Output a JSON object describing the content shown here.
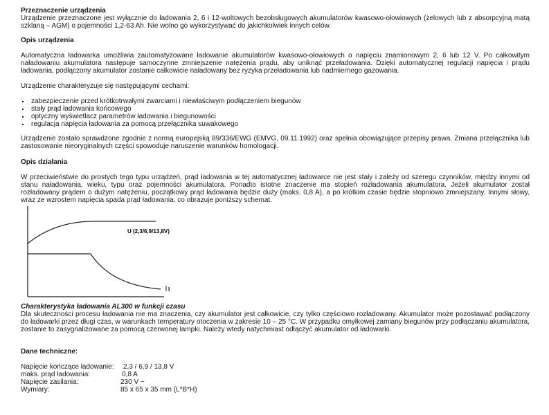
{
  "sections": {
    "purpose": {
      "heading": "Przeznaczenie urządzenia",
      "text": "Urządzenie przeznaczone jest wyłącznie do ładowania 2, 6 i 12-woltowych bezobsługowych akumulatorów kwasowo-ołowiowych (żelowych lub z absorpcyjną matą szklaną – AGM) o pojemności 1,2-63 Ah. Nie wolno go wykorzystywać do jakichkolwiek innych celów."
    },
    "description": {
      "heading": "Opis urządzenia",
      "text": "Automatyczna ładowarka umożliwia zautomatyzowane ładowanie akumulatorów kwasowo-ołowiowych o napięciu znamionowym 2, 6 lub 12 V. Po całkowitym naładowaniu akumulatora następuje samoczynne zmniejszenie natężenia prądu, aby uniknąć przeładowania. Dzięki automatycznej regulacji napięcia i prądu ładowania, podłączony akumulator zostanie całkowicie naładowany bez ryzyka przeładowania lub nadmiernego gazowania.",
      "features_intro": "Urządzenie charakteryzuje się następującymi cechami:",
      "features": [
        "zabezpieczenie przed krótkotrwałymi zwarciami i niewłaściwym podłączeniem biegunów",
        "stały prąd ładowania końcowego",
        "optyczny wyświetlacz parametrów ładowania i biegunowości",
        "regulacja napięcia ładowania za pomocą przełącznika suwakowego"
      ],
      "compliance": "Urządzenie zostało sprawdzone zgodnie z normą europejską 89/336/EWG (EMVG, 09.11.1992) oraz spełnia obowiązujące przepisy prawa. Zmiana przełącznika lub zastosowanie nieoryginalnych części spowoduje naruszenie warunków homologacji."
    },
    "operation": {
      "heading": "Opis działania",
      "text": "W przeciwieństwie do prostych tego typu urządzeń, prąd ładowania w tej automatycznej ładowarce nie jest stały i zależy od szeregu czynników, między innymi od stanu naładowania, wieku, typu oraz pojemności akumulatora. Ponadto istotne znaczenie ma stopień rozładowania akumulatora. Jeżeli akumulator został rozładowany prądem o dużym natężeniu, początkowy prąd ładowania będzie duży (maks. 0,8 A), a po krótkim czasie będzie stopniowo zmniejszany. Innymi słowy, wraz ze wzrostem napięcia spada prąd ładowania, co obrazuje poniższy schemat.",
      "diagram": {
        "voltage_label": "U (2,3/6,9/13,8V)",
        "current_label": "I"
      },
      "caption": "Charakterystyka ładowania AL300 w funkcji czasu",
      "caption_text": "Dla skuteczności procesu ładowania nie ma znaczenia, czy akumulator jest całkowicie, czy tylko częściowo rozładowany. Akumulator może pozostawać podłączony do ładowarki przez długi czas, w warunkach temperatury otoczenia w zakresie 10 – 25 °C. W przypadku omyłkowej zamiany biegunów przy podłączaniu akumulatora, zostanie to zasygnalizowane za pomocą czerwonej lampki. Należy wtedy natychmiast odłączyć akumulator od ładowarki."
    },
    "specs": {
      "heading": "Dane techniczne:",
      "rows": [
        {
          "label": "Napięcie kończące ładowanie:",
          "value": "2,3 / 6,9 / 13,8 V"
        },
        {
          "label": "maks. prąd ładowania:",
          "value": "0,8 A"
        },
        {
          "label": "Napięcie zasilania:",
          "value": "230 V ~"
        },
        {
          "label": "Wymiary:",
          "value": "85 x 65 x 35 mm (L*B*H)"
        }
      ]
    }
  }
}
